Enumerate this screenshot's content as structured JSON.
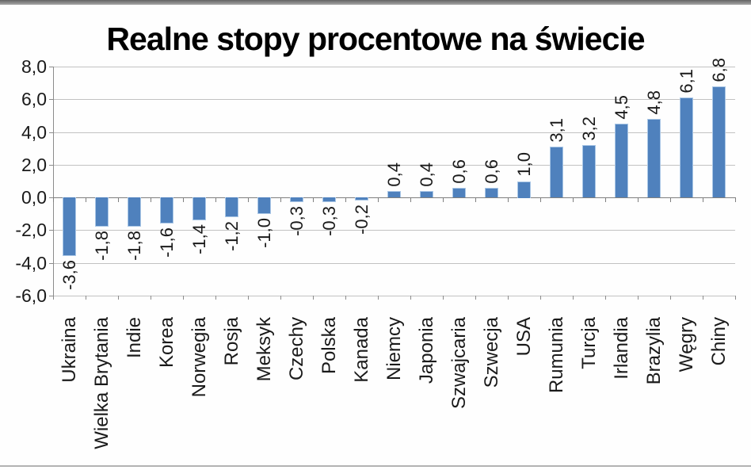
{
  "chart_data": {
    "type": "bar",
    "title": "Realne stopy procentowe na świecie",
    "xlabel": "",
    "ylabel": "",
    "categories": [
      "Ukraina",
      "Wielka Brytania",
      "Indie",
      "Korea",
      "Norwegia",
      "Rosja",
      "Meksyk",
      "Czechy",
      "Polska",
      "Kanada",
      "Niemcy",
      "Japonia",
      "Szwajcaria",
      "Szwecja",
      "USA",
      "Rumunia",
      "Turcja",
      "Irlandia",
      "Brazylia",
      "Węgry",
      "Chiny"
    ],
    "values": [
      -3.6,
      -1.8,
      -1.8,
      -1.6,
      -1.4,
      -1.2,
      -1.0,
      -0.3,
      -0.3,
      -0.2,
      0.4,
      0.4,
      0.6,
      0.6,
      1.0,
      3.1,
      3.2,
      4.5,
      4.8,
      6.1,
      6.8
    ],
    "value_labels": [
      "-3,6",
      "-1,8",
      "-1,8",
      "-1,6",
      "-1,4",
      "-1,2",
      "-1,0",
      "-0,3",
      "-0,3",
      "-0,2",
      "0,4",
      "0,4",
      "0,6",
      "0,6",
      "1,0",
      "3,1",
      "3,2",
      "4,5",
      "4,8",
      "6,1",
      "6,8"
    ],
    "y_ticks": [
      8,
      6,
      4,
      2,
      0,
      -2,
      -4,
      -6
    ],
    "y_tick_labels": [
      "8,0",
      "6,0",
      "4,0",
      "2,0",
      "0,0",
      "-2,0",
      "-4,0",
      "-6,0"
    ],
    "ylim": [
      -6,
      8
    ],
    "grid": true,
    "legend": "none",
    "colors": {
      "bar_fill": "#4f81bd",
      "bar_border": "#aac7e6",
      "gridline": "#c2c2c2",
      "zero_axis": "#7f7f7f",
      "y_axis": "#8c8c8c",
      "label_text": "#1a1a1a"
    }
  }
}
